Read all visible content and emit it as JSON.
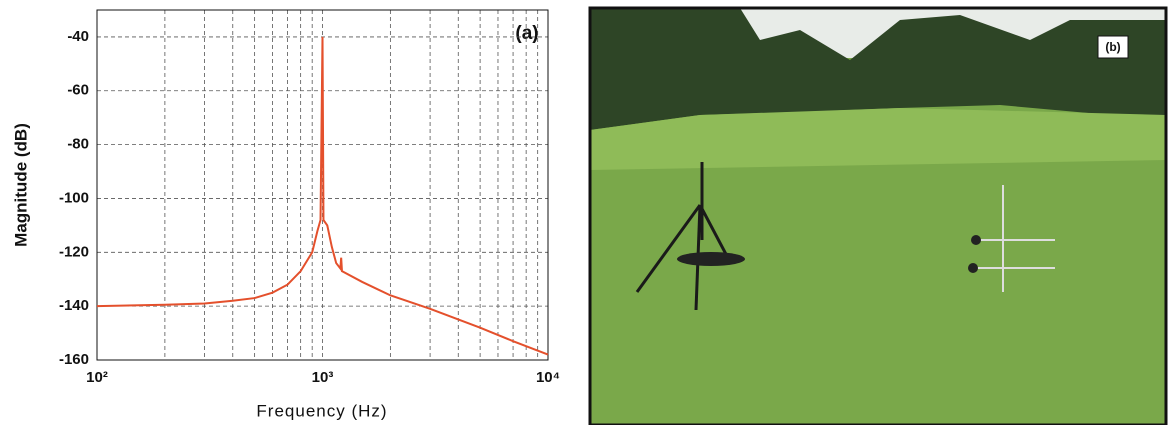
{
  "chart_data": {
    "type": "line",
    "xscale": "log",
    "grid": true,
    "ylabel": "Magnitude (dB)",
    "xlabel": "Frequency (Hz)",
    "annotation": "(a)",
    "color": "#e4502c",
    "x": [
      100,
      200,
      300,
      400,
      500,
      600,
      700,
      800,
      900,
      950,
      980,
      1000,
      1010,
      1050,
      1100,
      1150,
      1200,
      1210,
      1220,
      1500,
      2000,
      3000,
      5000,
      7000,
      10000
    ],
    "values": [
      -140,
      -139.5,
      -139,
      -138,
      -137,
      -135,
      -132,
      -127,
      -120,
      -112,
      -108,
      -40,
      -108,
      -110,
      -118,
      -124,
      -126,
      -122,
      -127,
      -131,
      -136,
      -141,
      -148,
      -153,
      -158
    ],
    "xlim": [
      100,
      10000
    ],
    "ylim": [
      -160,
      -30
    ],
    "xticks": [
      {
        "value": 100,
        "label": "10²"
      },
      {
        "value": 1000,
        "label": "10³"
      },
      {
        "value": 10000,
        "label": "10⁴"
      }
    ],
    "xminorticks": [
      200,
      300,
      400,
      500,
      600,
      700,
      800,
      900,
      2000,
      3000,
      4000,
      5000,
      6000,
      7000,
      8000,
      9000
    ],
    "yticks": [
      -160,
      -140,
      -120,
      -100,
      -80,
      -60,
      -40
    ]
  },
  "photo": {
    "label": "(b)"
  }
}
